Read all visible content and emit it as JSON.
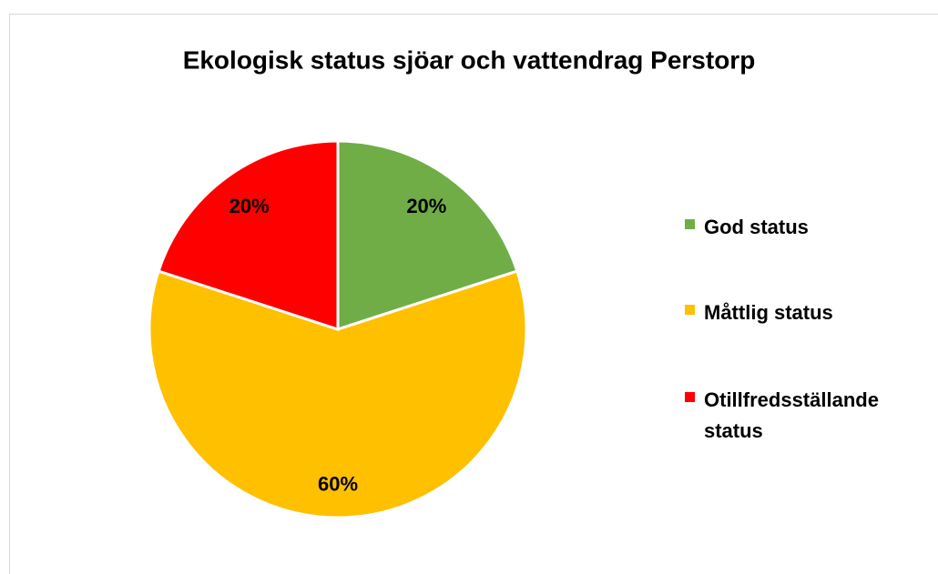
{
  "chart_data": {
    "type": "pie",
    "title": "Ekologisk status sjöar och vattendrag Perstorp",
    "categories": [
      "God status",
      "Måttlig status",
      "Otillfredsställande status"
    ],
    "values": [
      20,
      60,
      20
    ],
    "value_labels": [
      "20%",
      "60%",
      "20%"
    ],
    "colors": [
      "#70AD47",
      "#FFC000",
      "#FF0000"
    ],
    "legend": "right"
  }
}
